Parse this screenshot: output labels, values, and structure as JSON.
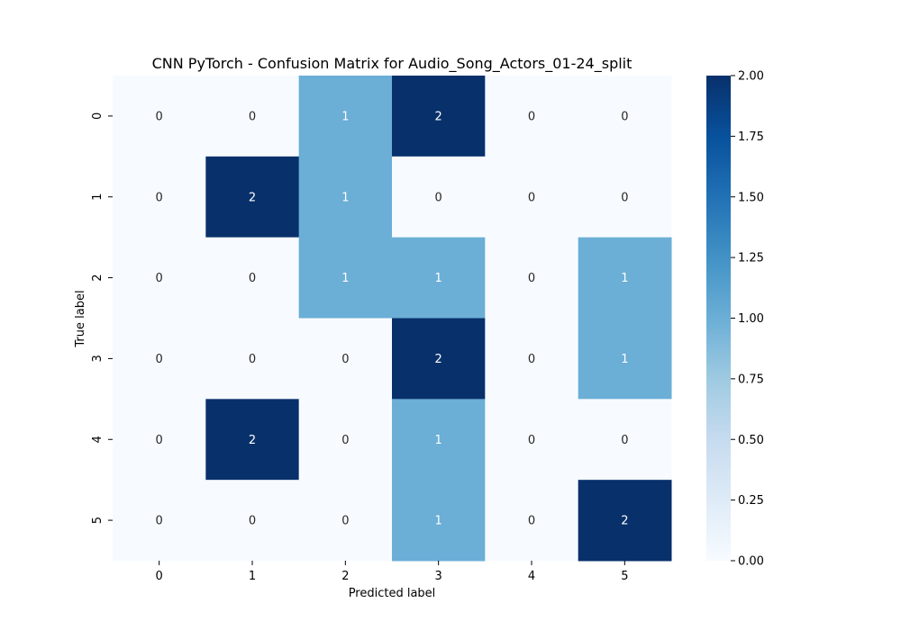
{
  "chart_data": {
    "type": "heatmap",
    "title": "CNN PyTorch - Confusion Matrix for Audio_Song_Actors_01-24_split",
    "xlabel": "Predicted label",
    "ylabel": "True label",
    "x_categories": [
      "0",
      "1",
      "2",
      "3",
      "4",
      "5"
    ],
    "y_categories": [
      "0",
      "1",
      "2",
      "3",
      "4",
      "5"
    ],
    "values": [
      [
        0,
        0,
        1,
        2,
        0,
        0
      ],
      [
        0,
        2,
        1,
        0,
        0,
        0
      ],
      [
        0,
        0,
        1,
        1,
        0,
        1
      ],
      [
        0,
        0,
        0,
        2,
        0,
        1
      ],
      [
        0,
        2,
        0,
        1,
        0,
        0
      ],
      [
        0,
        0,
        0,
        1,
        0,
        2
      ]
    ],
    "colorscale": "Blues",
    "colors": {
      "low": "#f7fbff",
      "mid": "#6baed6",
      "high": "#08306b",
      "text_dark": "#262626",
      "text_light": "#ffffff"
    },
    "colorbar": {
      "range": [
        0,
        2
      ],
      "ticks": [
        "0.00",
        "0.25",
        "0.50",
        "0.75",
        "1.00",
        "1.25",
        "1.50",
        "1.75",
        "2.00"
      ]
    },
    "grid": false,
    "legend": "colorbar-right"
  }
}
